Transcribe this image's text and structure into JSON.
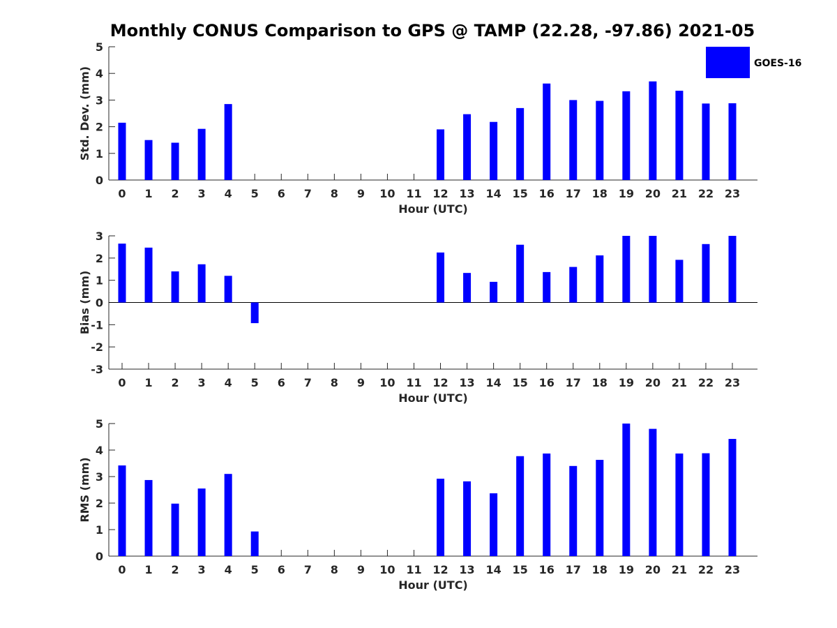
{
  "title": "Monthly CONUS Comparison to GPS @ TAMP (22.28, -97.86) 2021-05",
  "legend": {
    "label": "GOES-16",
    "color": "#0000ff"
  },
  "chart_data": [
    {
      "type": "bar",
      "xlabel": "Hour (UTC)",
      "ylabel": "Std. Dev. (mm)",
      "ylim": [
        0,
        5
      ],
      "yticks": [
        0,
        1,
        2,
        3,
        4,
        5
      ],
      "categories": [
        "0",
        "1",
        "2",
        "3",
        "4",
        "5",
        "6",
        "7",
        "8",
        "9",
        "10",
        "11",
        "12",
        "13",
        "14",
        "15",
        "16",
        "17",
        "18",
        "19",
        "20",
        "21",
        "22",
        "23"
      ],
      "series": [
        {
          "name": "GOES-16",
          "values": [
            2.15,
            1.5,
            1.4,
            1.92,
            2.85,
            null,
            null,
            null,
            null,
            null,
            null,
            null,
            1.9,
            2.47,
            2.18,
            2.7,
            3.62,
            3.0,
            2.97,
            3.33,
            3.7,
            3.35,
            2.87,
            2.88
          ]
        }
      ],
      "grid": false
    },
    {
      "type": "bar",
      "xlabel": "Hour (UTC)",
      "ylabel": "Bias (mm)",
      "ylim": [
        -3,
        3
      ],
      "yticks": [
        -3,
        -2,
        -1,
        0,
        1,
        2,
        3
      ],
      "categories": [
        "0",
        "1",
        "2",
        "3",
        "4",
        "5",
        "6",
        "7",
        "8",
        "9",
        "10",
        "11",
        "12",
        "13",
        "14",
        "15",
        "16",
        "17",
        "18",
        "19",
        "20",
        "21",
        "22",
        "23"
      ],
      "series": [
        {
          "name": "GOES-16",
          "values": [
            2.65,
            2.47,
            1.4,
            1.72,
            1.2,
            -0.93,
            null,
            null,
            null,
            null,
            null,
            null,
            2.25,
            1.33,
            0.93,
            2.6,
            1.37,
            1.6,
            2.12,
            3.0,
            3.0,
            1.92,
            2.63,
            3.0
          ]
        }
      ],
      "grid": false
    },
    {
      "type": "bar",
      "xlabel": "Hour (UTC)",
      "ylabel": "RMS (mm)",
      "ylim": [
        0,
        5
      ],
      "yticks": [
        0,
        1,
        2,
        3,
        4,
        5
      ],
      "categories": [
        "0",
        "1",
        "2",
        "3",
        "4",
        "5",
        "6",
        "7",
        "8",
        "9",
        "10",
        "11",
        "12",
        "13",
        "14",
        "15",
        "16",
        "17",
        "18",
        "19",
        "20",
        "21",
        "22",
        "23"
      ],
      "series": [
        {
          "name": "GOES-16",
          "values": [
            3.42,
            2.87,
            1.98,
            2.55,
            3.1,
            0.93,
            null,
            null,
            null,
            null,
            null,
            null,
            2.92,
            2.82,
            2.37,
            3.77,
            3.87,
            3.4,
            3.63,
            5.0,
            4.8,
            3.87,
            3.88,
            4.42
          ]
        }
      ],
      "grid": false
    }
  ]
}
